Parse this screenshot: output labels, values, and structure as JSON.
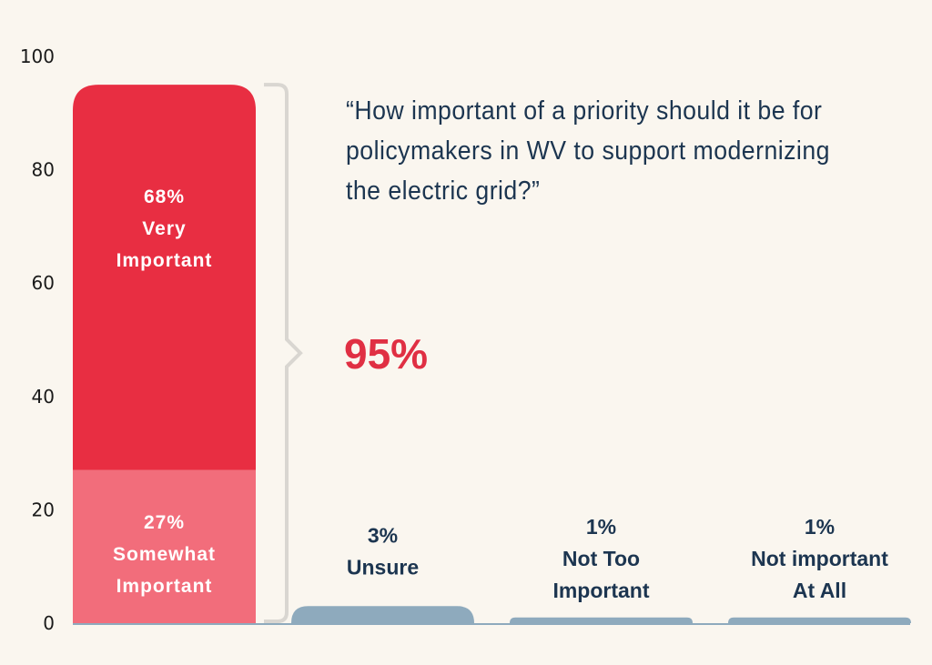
{
  "chart_data": {
    "type": "bar",
    "stacked": true,
    "title": "“How important of a priority should it be for policymakers in WV to support modernizing the electric grid?”",
    "annotation": "95%",
    "ylim": [
      0,
      100
    ],
    "yticks": [
      0,
      20,
      40,
      60,
      80,
      100
    ],
    "grid": false,
    "bars": [
      {
        "segments": [
          {
            "value": 27,
            "label": [
              "27%",
              "Somewhat",
              "Important"
            ],
            "color": "#f26d7b"
          },
          {
            "value": 68,
            "label": [
              "68%",
              "Very",
              "Important"
            ],
            "color": "#e82e42"
          }
        ]
      },
      {
        "segments": [
          {
            "value": 3,
            "label": [
              "3%",
              "Unsure"
            ],
            "color": "#8eaabd"
          }
        ]
      },
      {
        "segments": [
          {
            "value": 1,
            "label": [
              "1%",
              "Not Too",
              "Important"
            ],
            "color": "#8eaabd"
          }
        ]
      },
      {
        "segments": [
          {
            "value": 1,
            "label": [
              "1%",
              "Not important",
              "At All"
            ],
            "color": "#8eaabd"
          }
        ]
      }
    ],
    "bracket_color": "#d9d6d1",
    "axis_color": "#8eaabd"
  }
}
